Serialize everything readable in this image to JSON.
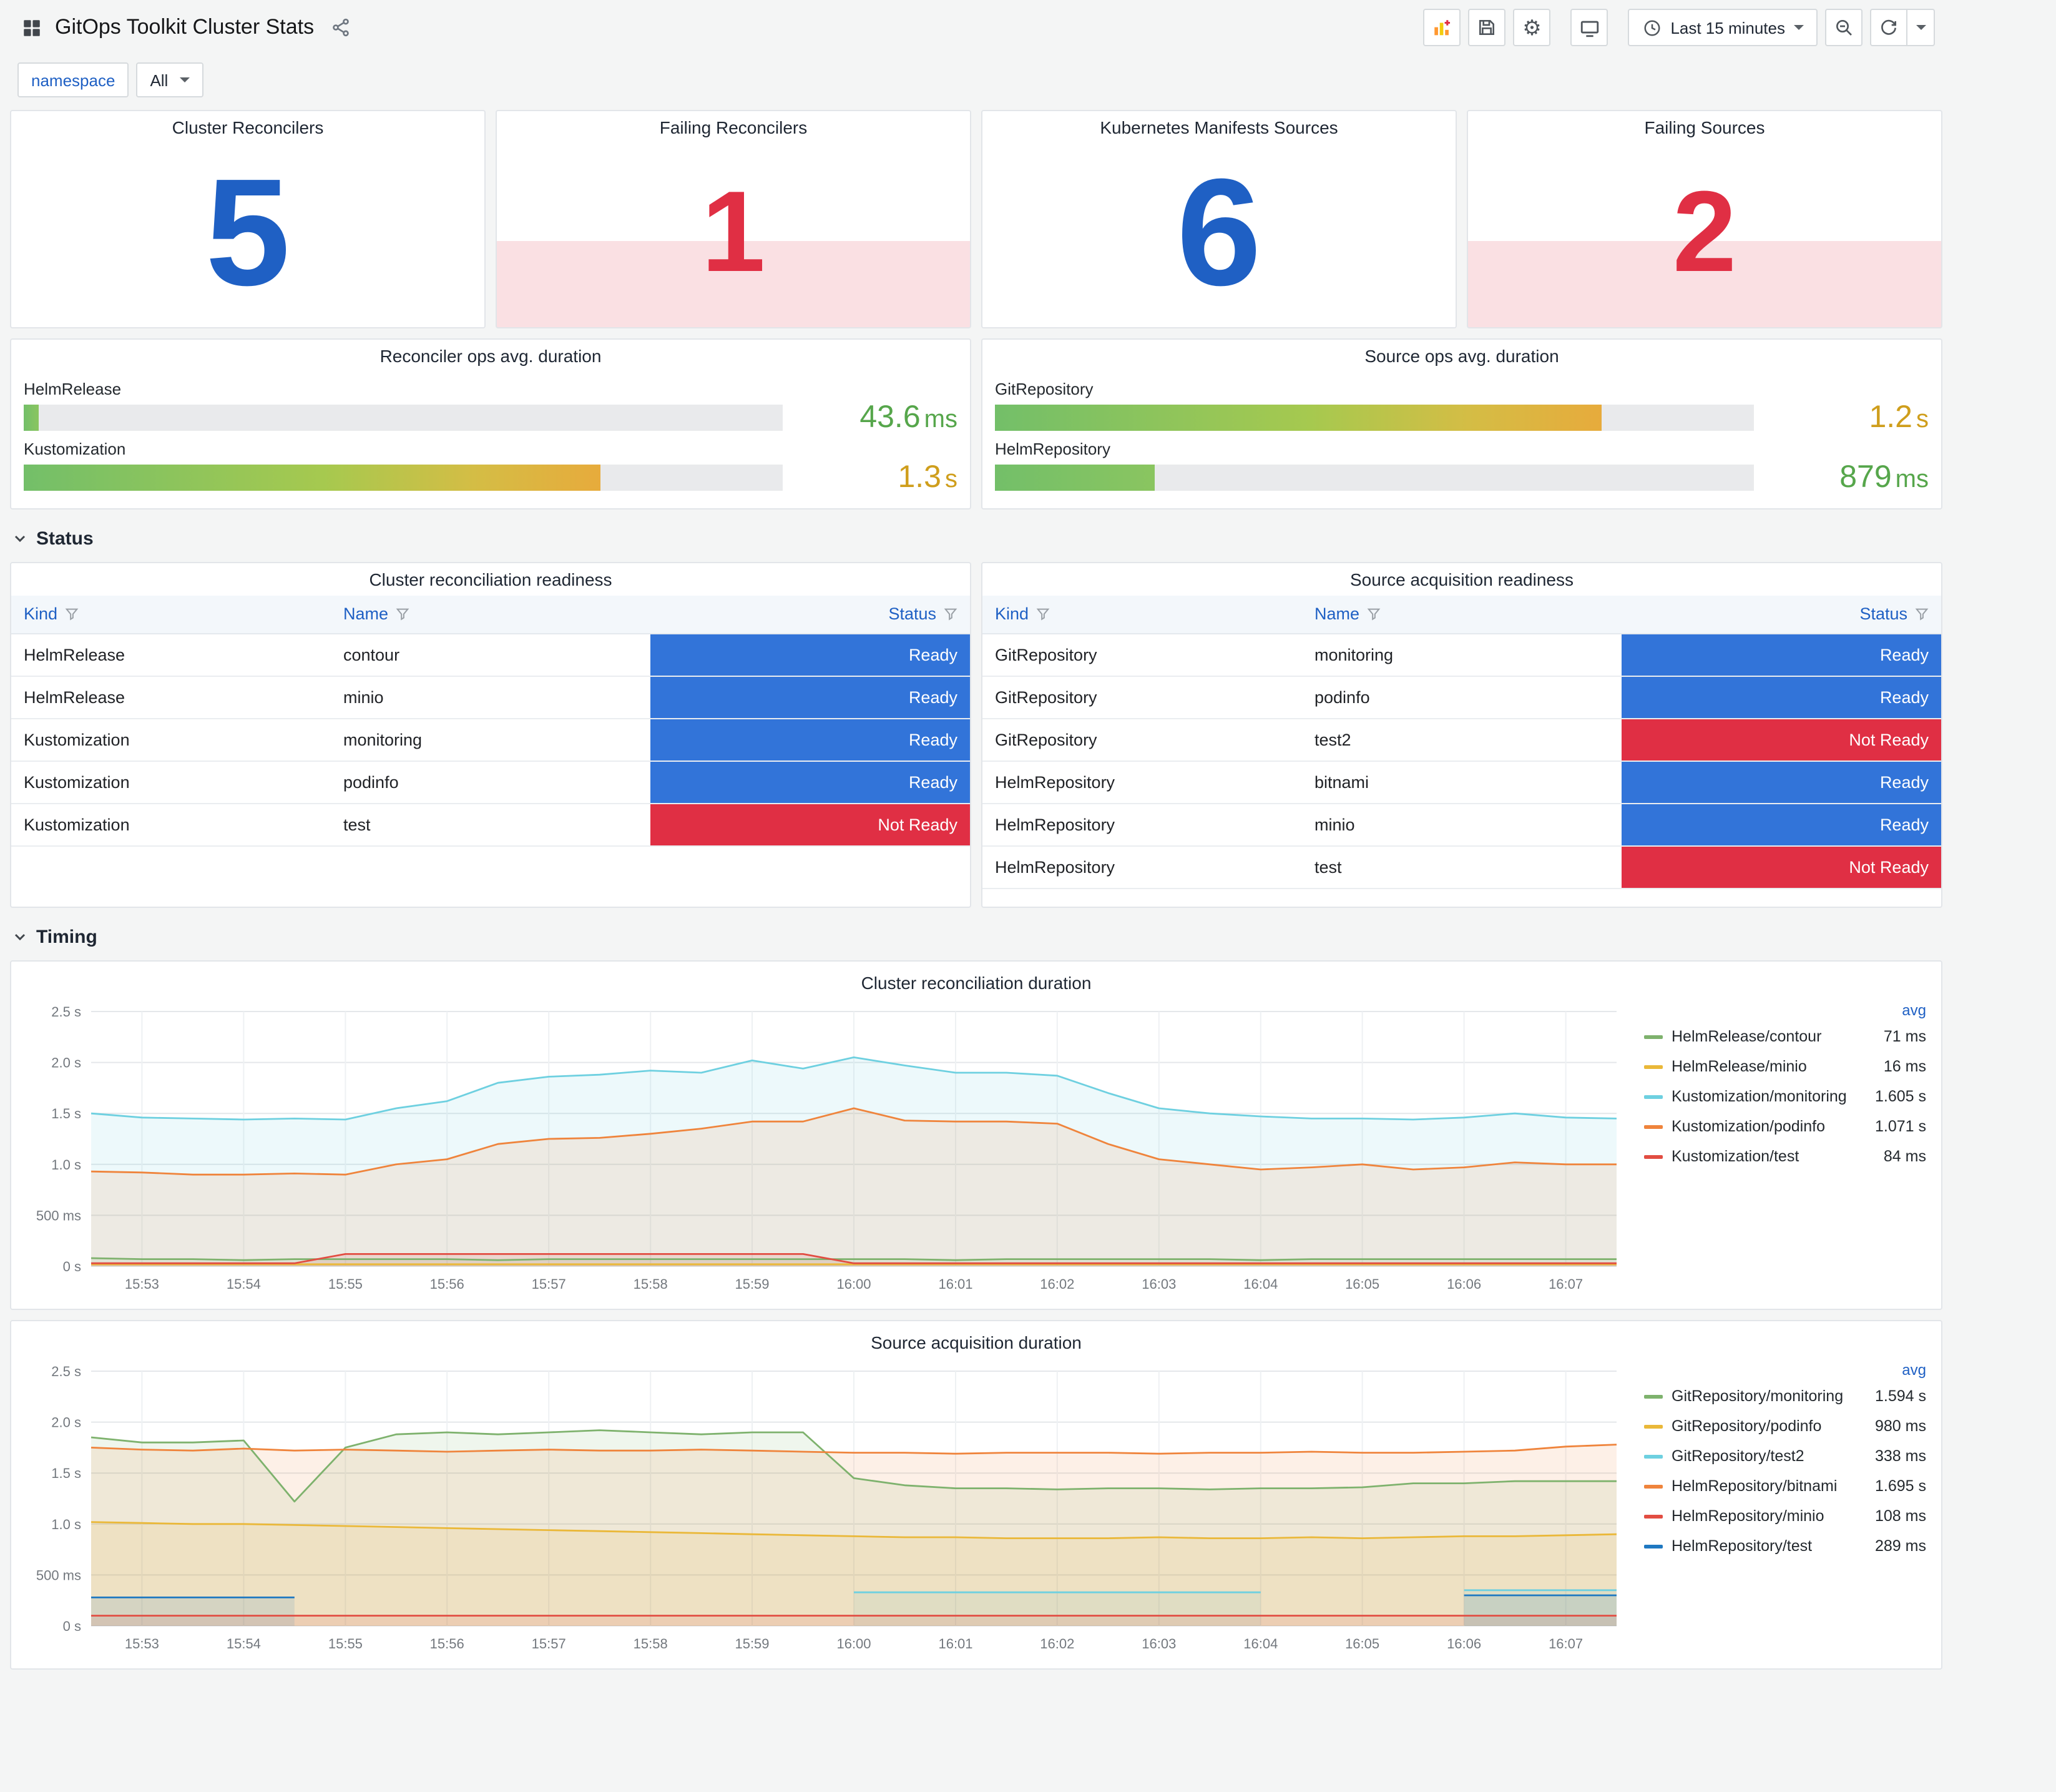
{
  "app": {
    "title": "GitOps Toolkit Cluster Stats",
    "time_picker": {
      "label": "Last 15 minutes"
    },
    "variables": {
      "name": "namespace",
      "value": "All"
    }
  },
  "sections": {
    "status": "Status",
    "timing": "Timing"
  },
  "colors": {
    "accent_blue": "#1f60c4",
    "stat_ok": "#1f60c4",
    "stat_alert": "#e02f44",
    "alert_band_bg": "rgba(224,47,68,0.15)",
    "ready": "#3274d9",
    "not_ready": "#e02f44",
    "value_green": "#56a64b",
    "value_amber": "#cf9e1c",
    "gauge_green": "#73bf69",
    "gauge_amber_end": "#e7ab3c"
  },
  "stat_panels": [
    {
      "title": "Cluster Reconcilers",
      "value": "5",
      "state": "ok"
    },
    {
      "title": "Failing Reconcilers",
      "value": "1",
      "state": "alert"
    },
    {
      "title": "Kubernetes Manifests Sources",
      "value": "6",
      "state": "ok"
    },
    {
      "title": "Failing Sources",
      "value": "2",
      "state": "alert"
    }
  ],
  "gauge_panels": [
    {
      "title": "Reconciler ops avg. duration",
      "bars": [
        {
          "label": "HelmRelease",
          "value": "43.6",
          "unit": "ms",
          "percent": 2,
          "color": "green"
        },
        {
          "label": "Kustomization",
          "value": "1.3",
          "unit": "s",
          "percent": 76,
          "color": "amber"
        }
      ]
    },
    {
      "title": "Source ops avg. duration",
      "bars": [
        {
          "label": "GitRepository",
          "value": "1.2",
          "unit": "s",
          "percent": 80,
          "color": "amber"
        },
        {
          "label": "HelmRepository",
          "value": "879",
          "unit": "ms",
          "percent": 21,
          "color": "green"
        }
      ]
    }
  ],
  "table_panels": [
    {
      "title": "Cluster reconciliation readiness",
      "columns": [
        "Kind",
        "Name",
        "Status"
      ],
      "rows": [
        [
          "HelmRelease",
          "contour",
          "Ready"
        ],
        [
          "HelmRelease",
          "minio",
          "Ready"
        ],
        [
          "Kustomization",
          "monitoring",
          "Ready"
        ],
        [
          "Kustomization",
          "podinfo",
          "Ready"
        ],
        [
          "Kustomization",
          "test",
          "Not Ready"
        ]
      ]
    },
    {
      "title": "Source acquisition readiness",
      "columns": [
        "Kind",
        "Name",
        "Status"
      ],
      "rows": [
        [
          "GitRepository",
          "monitoring",
          "Ready"
        ],
        [
          "GitRepository",
          "podinfo",
          "Ready"
        ],
        [
          "GitRepository",
          "test2",
          "Not Ready"
        ],
        [
          "HelmRepository",
          "bitnami",
          "Ready"
        ],
        [
          "HelmRepository",
          "minio",
          "Ready"
        ],
        [
          "HelmRepository",
          "test",
          "Not Ready"
        ]
      ]
    }
  ],
  "chart_data": [
    {
      "type": "line",
      "title": "Cluster reconciliation duration",
      "legend_header": "avg",
      "legend_position": "right",
      "grid": true,
      "ylim": [
        0,
        2.5
      ],
      "y_ticks": [
        0,
        0.5,
        1.0,
        1.5,
        2.0,
        2.5
      ],
      "y_tick_labels": [
        "0 s",
        "500 ms",
        "1.0 s",
        "1.5 s",
        "2.0 s",
        "2.5 s"
      ],
      "x_tick_labels": [
        "15:53",
        "15:54",
        "15:55",
        "15:56",
        "15:57",
        "15:58",
        "15:59",
        "16:00",
        "16:01",
        "16:02",
        "16:03",
        "16:04",
        "16:05",
        "16:06",
        "16:07"
      ],
      "x_range": [
        "15:52:30",
        "16:07:30"
      ],
      "unit": "seconds",
      "series": [
        {
          "name": "HelmRelease/contour",
          "avg": "71 ms",
          "color": "#7EB26D",
          "values": [
            0.08,
            0.07,
            0.07,
            0.06,
            0.07,
            0.07,
            0.07,
            0.07,
            0.06,
            0.07,
            0.07,
            0.07,
            0.07,
            0.07,
            0.07,
            0.07,
            0.07,
            0.06,
            0.07,
            0.07,
            0.07,
            0.07,
            0.07,
            0.06,
            0.07,
            0.07,
            0.07,
            0.07,
            0.07,
            0.07,
            0.07
          ]
        },
        {
          "name": "HelmRelease/minio",
          "avg": "16 ms",
          "color": "#EAB839",
          "values": [
            0.02,
            0.02,
            0.02,
            0.02,
            0.02,
            0.02,
            0.02,
            0.02,
            0.02,
            0.02,
            0.02,
            0.02,
            0.02,
            0.02,
            0.02,
            0.02,
            0.02,
            0.02,
            0.02,
            0.02,
            0.02,
            0.02,
            0.02,
            0.02,
            0.02,
            0.02,
            0.02,
            0.02,
            0.02,
            0.02,
            0.02
          ]
        },
        {
          "name": "Kustomization/monitoring",
          "avg": "1.605 s",
          "color": "#6ED0E0",
          "values": [
            1.5,
            1.46,
            1.45,
            1.44,
            1.45,
            1.44,
            1.55,
            1.62,
            1.8,
            1.86,
            1.88,
            1.92,
            1.9,
            2.02,
            1.94,
            2.05,
            1.97,
            1.9,
            1.9,
            1.87,
            1.7,
            1.55,
            1.5,
            1.47,
            1.45,
            1.45,
            1.44,
            1.46,
            1.5,
            1.46,
            1.45
          ]
        },
        {
          "name": "Kustomization/podinfo",
          "avg": "1.071 s",
          "color": "#EF843C",
          "values": [
            0.93,
            0.92,
            0.9,
            0.9,
            0.91,
            0.9,
            1.0,
            1.05,
            1.2,
            1.25,
            1.26,
            1.3,
            1.35,
            1.42,
            1.42,
            1.55,
            1.43,
            1.42,
            1.42,
            1.4,
            1.2,
            1.05,
            1.0,
            0.95,
            0.97,
            1.0,
            0.95,
            0.97,
            1.02,
            1.0,
            1.0
          ]
        },
        {
          "name": "Kustomization/test",
          "avg": "84 ms",
          "color": "#E24D42",
          "values": [
            0.03,
            0.03,
            0.03,
            0.03,
            0.03,
            0.12,
            0.12,
            0.12,
            0.12,
            0.12,
            0.12,
            0.12,
            0.12,
            0.12,
            0.12,
            0.03,
            0.03,
            0.03,
            0.03,
            0.03,
            0.03,
            0.03,
            0.03,
            0.03,
            0.03,
            0.03,
            0.03,
            0.03,
            0.03,
            0.03,
            0.03
          ]
        }
      ]
    },
    {
      "type": "line",
      "title": "Source acquisition duration",
      "legend_header": "avg",
      "legend_position": "right",
      "grid": true,
      "ylim": [
        0,
        2.5
      ],
      "y_ticks": [
        0,
        0.5,
        1.0,
        1.5,
        2.0,
        2.5
      ],
      "y_tick_labels": [
        "0 s",
        "500 ms",
        "1.0 s",
        "1.5 s",
        "2.0 s",
        "2.5 s"
      ],
      "x_tick_labels": [
        "15:53",
        "15:54",
        "15:55",
        "15:56",
        "15:57",
        "15:58",
        "15:59",
        "16:00",
        "16:01",
        "16:02",
        "16:03",
        "16:04",
        "16:05",
        "16:06",
        "16:07"
      ],
      "x_range": [
        "15:52:30",
        "16:07:30"
      ],
      "unit": "seconds",
      "series": [
        {
          "name": "GitRepository/monitoring",
          "avg": "1.594 s",
          "color": "#7EB26D",
          "values": [
            1.85,
            1.8,
            1.8,
            1.82,
            1.22,
            1.75,
            1.88,
            1.9,
            1.88,
            1.9,
            1.92,
            1.9,
            1.88,
            1.9,
            1.9,
            1.45,
            1.38,
            1.35,
            1.35,
            1.34,
            1.35,
            1.35,
            1.34,
            1.35,
            1.35,
            1.36,
            1.4,
            1.4,
            1.42,
            1.42,
            1.42
          ]
        },
        {
          "name": "GitRepository/podinfo",
          "avg": "980 ms",
          "color": "#EAB839",
          "values": [
            1.02,
            1.01,
            1.0,
            1.0,
            0.99,
            0.98,
            0.97,
            0.96,
            0.95,
            0.94,
            0.93,
            0.92,
            0.91,
            0.9,
            0.89,
            0.88,
            0.87,
            0.87,
            0.86,
            0.86,
            0.86,
            0.87,
            0.86,
            0.86,
            0.87,
            0.86,
            0.87,
            0.88,
            0.88,
            0.89,
            0.9
          ]
        },
        {
          "name": "GitRepository/test2",
          "avg": "338 ms",
          "color": "#6ED0E0",
          "values": [
            null,
            null,
            null,
            null,
            null,
            null,
            null,
            null,
            null,
            null,
            null,
            null,
            null,
            null,
            null,
            0.33,
            0.33,
            0.33,
            0.33,
            0.33,
            0.33,
            0.33,
            0.33,
            0.33,
            null,
            null,
            null,
            0.35,
            0.35,
            0.35,
            0.35
          ]
        },
        {
          "name": "HelmRepository/bitnami",
          "avg": "1.695 s",
          "color": "#EF843C",
          "values": [
            1.75,
            1.73,
            1.72,
            1.74,
            1.72,
            1.73,
            1.72,
            1.71,
            1.72,
            1.73,
            1.72,
            1.72,
            1.73,
            1.72,
            1.71,
            1.7,
            1.7,
            1.69,
            1.7,
            1.7,
            1.7,
            1.69,
            1.7,
            1.7,
            1.71,
            1.7,
            1.7,
            1.71,
            1.72,
            1.76,
            1.78
          ]
        },
        {
          "name": "HelmRepository/minio",
          "avg": "108 ms",
          "color": "#E24D42",
          "values": [
            0.1,
            0.1,
            0.1,
            0.1,
            0.1,
            0.1,
            0.1,
            0.1,
            0.1,
            0.1,
            0.1,
            0.1,
            0.1,
            0.1,
            0.1,
            0.1,
            0.1,
            0.1,
            0.1,
            0.1,
            0.1,
            0.1,
            0.1,
            0.1,
            0.1,
            0.1,
            0.1,
            0.1,
            0.1,
            0.1,
            0.1
          ]
        },
        {
          "name": "HelmRepository/test",
          "avg": "289 ms",
          "color": "#1F78C1",
          "values": [
            0.28,
            0.28,
            0.28,
            0.28,
            0.28,
            null,
            null,
            null,
            null,
            null,
            null,
            null,
            null,
            null,
            null,
            null,
            null,
            null,
            null,
            null,
            null,
            null,
            null,
            null,
            null,
            null,
            null,
            0.3,
            0.3,
            0.3,
            0.3
          ]
        }
      ]
    }
  ]
}
